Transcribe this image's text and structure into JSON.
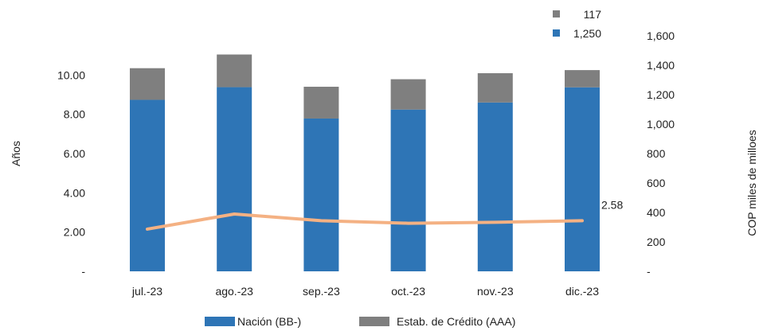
{
  "chart_data": {
    "type": "bar",
    "categories": [
      "jul.-23",
      "ago.-23",
      "sep.-23",
      "oct.-23",
      "nov.-23",
      "dic.-23"
    ],
    "series": [
      {
        "name": "Nación (BB-)",
        "axis": "right",
        "stack": true,
        "color": "#2e75b6",
        "values": [
          1165,
          1251,
          1038,
          1099,
          1147,
          1250
        ]
      },
      {
        "name": "Estab. de Crédito (AAA)",
        "axis": "right",
        "stack": true,
        "color": "#7f7f7f",
        "values": [
          215,
          222,
          216,
          206,
          199,
          117
        ]
      },
      {
        "type": "line",
        "axis": "left",
        "color": "#f4b183",
        "values": [
          2.15,
          2.92,
          2.58,
          2.45,
          2.5,
          2.58
        ]
      }
    ],
    "ylabel": "Años",
    "ylabel_right": "COP miles de milloes",
    "ylim": [
      0,
      12
    ],
    "ylim_right": [
      0,
      1600
    ],
    "yticks": [
      "-",
      "2.00",
      "4.00",
      "6.00",
      "8.00",
      "10.00"
    ],
    "yticks_right": [
      "-",
      "200",
      "400",
      "600",
      "800",
      "1,000",
      "1,200",
      "1,400",
      "1,600"
    ],
    "annotations": [
      {
        "text": "2.58",
        "target": "line",
        "index": 5
      },
      {
        "text": "1,250",
        "target": "series",
        "series": 0,
        "index": 5
      },
      {
        "text": "117",
        "target": "series",
        "series": 1,
        "index": 5
      }
    ],
    "legend": [
      {
        "label": "Nación (BB-)",
        "color": "#2e75b6"
      },
      {
        "label": "Estab. de Crédito (AAA)",
        "color": "#7f7f7f"
      }
    ],
    "legend_position": "bottom",
    "grid": false
  }
}
